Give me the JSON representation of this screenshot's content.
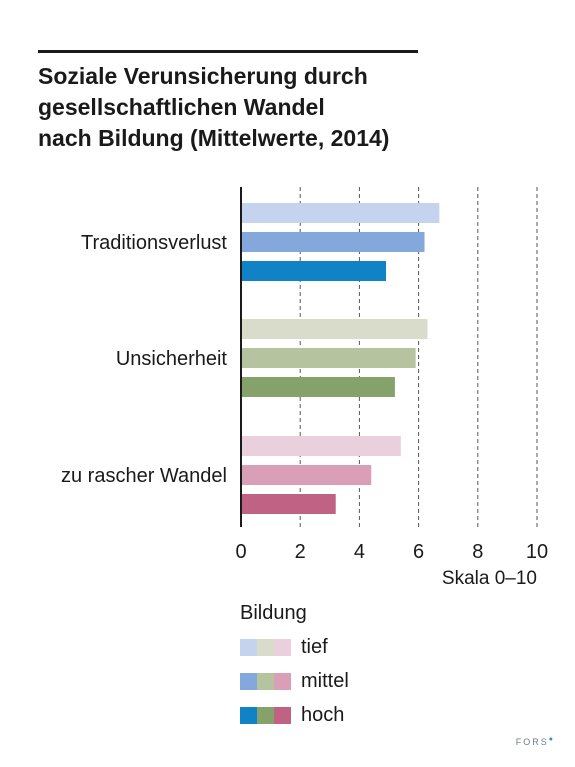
{
  "title_lines": [
    "Soziale Verunsicherung durch",
    "gesellschaftlichen Wandel",
    "nach Bildung (Mittelwerte, 2014)"
  ],
  "scale_label": "Skala 0–10",
  "legend": {
    "title": "Bildung",
    "items": [
      "tief",
      "mittel",
      "hoch"
    ]
  },
  "colors": {
    "Traditionsverlust": [
      "#c5d3ee",
      "#85a8dc",
      "#1182c6"
    ],
    "Unsicherheit": [
      "#d9dccb",
      "#b5c39e",
      "#85a26a"
    ],
    "zu rascher Wandel": [
      "#ead0dc",
      "#d89fb6",
      "#c06283"
    ]
  },
  "brand": "FORS",
  "chart_data": {
    "type": "bar",
    "orientation": "horizontal",
    "categories": [
      "Traditionsverlust",
      "Unsicherheit",
      "zu rascher Wandel"
    ],
    "series": [
      {
        "name": "tief",
        "values": [
          6.7,
          6.3,
          5.4
        ]
      },
      {
        "name": "mittel",
        "values": [
          6.2,
          5.9,
          4.4
        ]
      },
      {
        "name": "hoch",
        "values": [
          4.9,
          5.2,
          3.2
        ]
      }
    ],
    "xlim": [
      0,
      10
    ],
    "xticks": [
      0,
      2,
      4,
      6,
      8,
      10
    ],
    "xlabel": "Skala 0–10",
    "grid": "vertical dashed",
    "legend_placement": "bottom"
  }
}
